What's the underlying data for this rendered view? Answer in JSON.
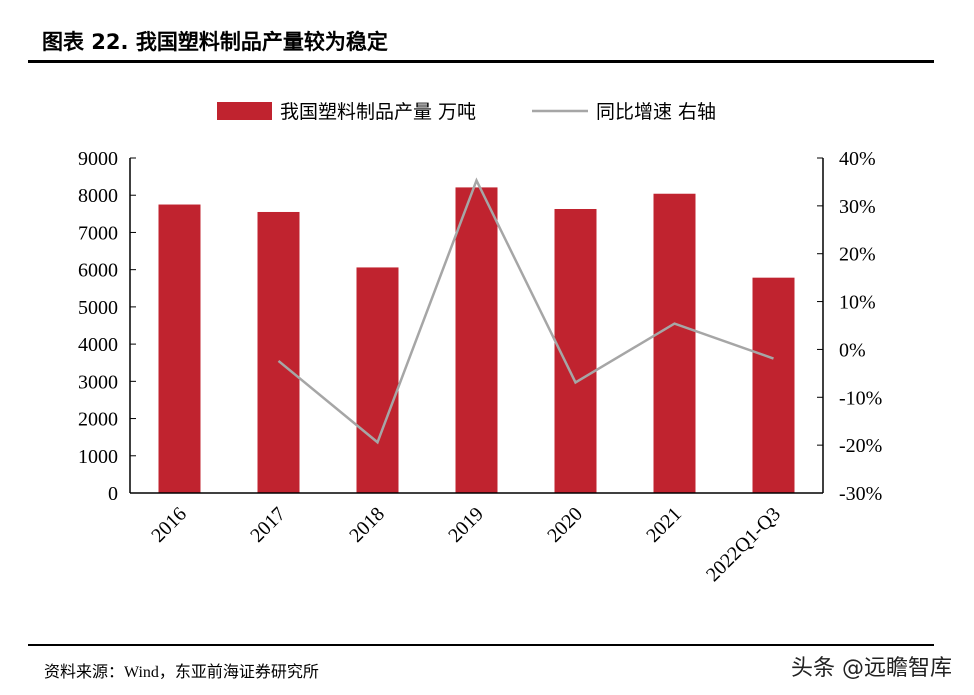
{
  "title": "图表 22. 我国塑料制品产量较为稳定",
  "source": "资料来源：Wind，东亚前海证券研究所",
  "watermark": "头条 @远瞻智库",
  "chart_data": {
    "type": "bar+line",
    "categories": [
      "2016",
      "2017",
      "2018",
      "2019",
      "2020",
      "2021",
      "2022Q1-Q3"
    ],
    "series": [
      {
        "name": "我国塑料制品产量 万吨",
        "type": "bar",
        "axis": "left",
        "color": "#c0232f",
        "values": [
          7750,
          7550,
          6060,
          8210,
          7630,
          8040,
          5785
        ]
      },
      {
        "name": "同比增速 右轴",
        "type": "line",
        "axis": "right",
        "color": "#a6a6a6",
        "values": [
          null,
          -2.4,
          -19.4,
          35.3,
          -6.9,
          5.4,
          -1.9
        ]
      }
    ],
    "left_axis": {
      "ylim": [
        0,
        9000
      ],
      "ticks": [
        "0",
        "1000",
        "2000",
        "3000",
        "4000",
        "5000",
        "6000",
        "7000",
        "8000",
        "9000"
      ]
    },
    "right_axis": {
      "ylim": [
        -30,
        40
      ],
      "ticks": [
        "-30%",
        "-20%",
        "-10%",
        "0%",
        "10%",
        "20%",
        "30%",
        "40%"
      ]
    },
    "legend": "top",
    "grid": false
  }
}
